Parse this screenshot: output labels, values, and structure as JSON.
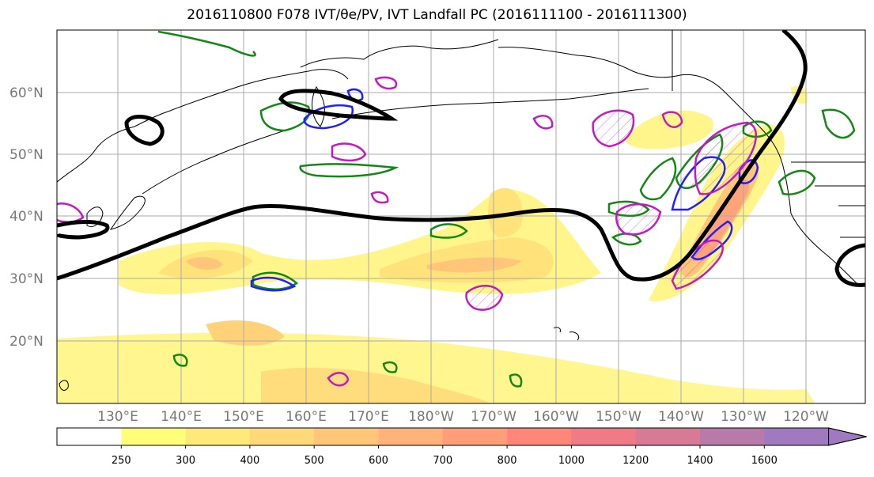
{
  "title": "2016110800 F078 IVT/θe/PV, IVT Landfall PC (2016111100 - 2016111300)",
  "lat_labels": [
    "60°N",
    "50°N",
    "40°N",
    "30°N",
    "20°N"
  ],
  "lon_labels": [
    "130°E",
    "140°E",
    "150°E",
    "160°E",
    "170°E",
    "180°W",
    "170°W",
    "160°W",
    "150°W",
    "140°W",
    "130°W",
    "120°W"
  ],
  "colorbar": {
    "ticks": [
      "250",
      "300",
      "400",
      "500",
      "600",
      "700",
      "800",
      "1000",
      "1200",
      "1400",
      "1600"
    ],
    "colors": [
      "#ffffff",
      "#fffe78",
      "#ffe97a",
      "#ffd87a",
      "#ffc67a",
      "#ffb27a",
      "#ff9c7a",
      "#ff8679",
      "#f07a86",
      "#d67a96",
      "#b87aa8",
      "#a07ac0"
    ]
  },
  "contour_colors": {
    "black": "#000000",
    "green": "#118811",
    "blue": "#1f1fff",
    "magenta": "#c319c3",
    "coast": "#000000"
  }
}
